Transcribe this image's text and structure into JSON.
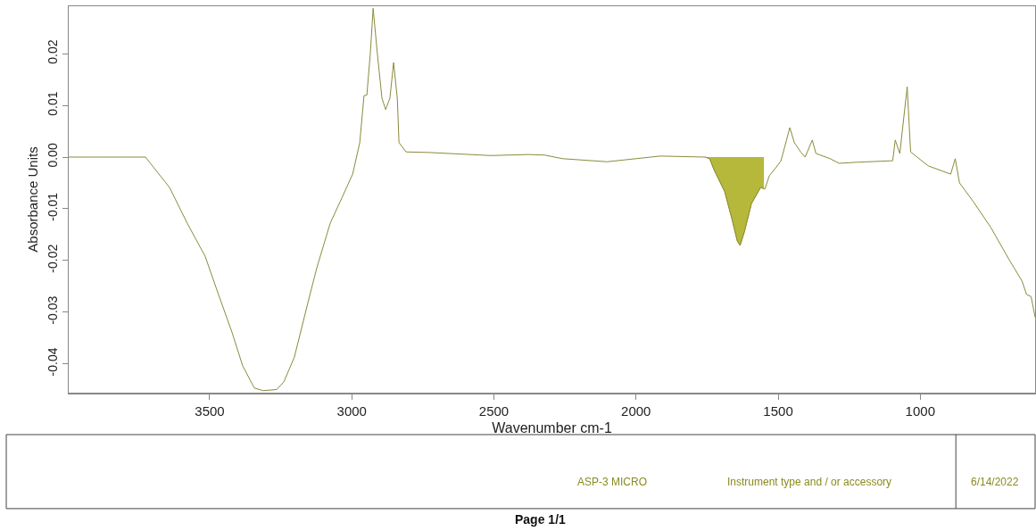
{
  "chart_data": {
    "type": "line",
    "xlabel": "Wavenumber cm-1",
    "ylabel": "Absorbance Units",
    "xlim": [
      3996,
      596
    ],
    "ylim": [
      -0.0456,
      0.0292
    ],
    "xticks": [
      3500,
      3000,
      2500,
      2000,
      1500,
      1000
    ],
    "yticks": [
      0.02,
      0.01,
      {
        "value": 0,
        "label": "0.00"
      },
      -0.01,
      -0.02,
      -0.03,
      -0.04
    ],
    "grid": false,
    "marker": "none",
    "line_style": "solid",
    "series": [
      {
        "color": "#8a8a3c",
        "x": [
          3996,
          3900,
          3800,
          3726,
          3641,
          3579,
          3516,
          3469,
          3421,
          3384,
          3343,
          3312,
          3264,
          3239,
          3202,
          3155,
          3123,
          3076,
          3035,
          2997,
          2972,
          2957,
          2947,
          2935,
          2925,
          2910,
          2894,
          2881,
          2866,
          2853,
          2840,
          2834,
          2809,
          2731,
          2511,
          2379,
          2322,
          2259,
          2102,
          1914,
          1757,
          1741,
          1726,
          1688,
          1663,
          1644,
          1634,
          1619,
          1594,
          1562,
          1547,
          1531,
          1506,
          1490,
          1459,
          1443,
          1421,
          1405,
          1380,
          1367,
          1317,
          1286,
          1223,
          1097,
          1088,
          1072,
          1046,
          1034,
          972,
          893,
          877,
          862,
          815,
          752,
          689,
          642,
          626,
          610,
          596
        ],
        "values": [
          0.0,
          0.0,
          0.0,
          0.0,
          -0.0059,
          -0.0128,
          -0.0192,
          -0.0266,
          -0.034,
          -0.0404,
          -0.0447,
          -0.0452,
          -0.045,
          -0.0435,
          -0.0387,
          -0.0283,
          -0.0214,
          -0.0128,
          -0.0079,
          -0.0033,
          0.0028,
          0.0119,
          0.012,
          0.02,
          0.0288,
          0.02,
          0.0114,
          0.0092,
          0.0114,
          0.0183,
          0.0114,
          0.0028,
          0.001,
          0.0009,
          0.0003,
          0.0005,
          0.0004,
          -0.0003,
          -0.0009,
          0.0002,
          0.0,
          -0.0003,
          -0.0024,
          -0.0067,
          -0.0119,
          -0.0162,
          -0.0171,
          -0.0145,
          -0.009,
          -0.0059,
          -0.0062,
          -0.0036,
          -0.0019,
          -0.0007,
          0.0057,
          0.0028,
          0.001,
          0.0,
          0.0033,
          0.0007,
          -0.0003,
          -0.0012,
          -0.001,
          -0.0007,
          0.0033,
          0.0007,
          0.0136,
          0.001,
          -0.0017,
          -0.0033,
          -0.0003,
          -0.005,
          -0.0085,
          -0.0136,
          -0.0197,
          -0.024,
          -0.0266,
          -0.027,
          -0.031
        ]
      },
      {
        "type": "area",
        "color": "#b5b83a",
        "x": [
          1757,
          1741,
          1726,
          1688,
          1663,
          1644,
          1634,
          1619,
          1594,
          1562,
          1550
        ],
        "values": [
          0.0,
          -0.0003,
          -0.0024,
          -0.0067,
          -0.0119,
          -0.0162,
          -0.0171,
          -0.0145,
          -0.009,
          -0.0059,
          -0.006
        ]
      }
    ],
    "annotations": [
      "ASP-3 MICRO",
      "Instrument type and / or accessory",
      "6/14/2022",
      "Page 1/1"
    ]
  }
}
